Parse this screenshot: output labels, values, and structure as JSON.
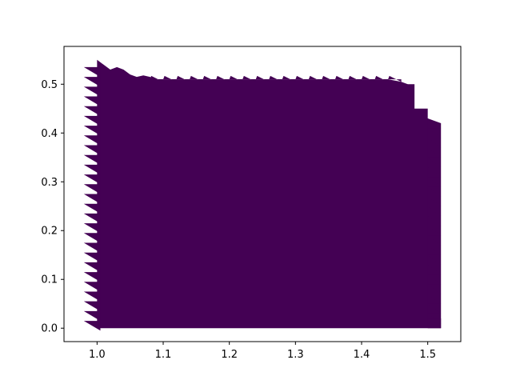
{
  "chart_data": {
    "type": "area",
    "title": "",
    "xlabel": "",
    "ylabel": "",
    "xlim": [
      0.95,
      1.55
    ],
    "ylim": [
      -0.0275,
      0.5775
    ],
    "grid": false,
    "legend": "none",
    "x_ticks": [
      "1.0",
      "1.1",
      "1.2",
      "1.3",
      "1.4",
      "1.5"
    ],
    "x_tick_values": [
      1.0,
      1.1,
      1.2,
      1.3,
      1.4,
      1.5
    ],
    "y_ticks": [
      "0.0",
      "0.1",
      "0.2",
      "0.3",
      "0.4",
      "0.5"
    ],
    "y_tick_values": [
      0.0,
      0.1,
      0.2,
      0.3,
      0.4,
      0.5
    ],
    "fill_color": "#440154",
    "series": [
      {
        "x": [
          1.0,
          1.01,
          1.02,
          1.03,
          1.04,
          1.05,
          1.06,
          1.07,
          1.08,
          1.09,
          1.1,
          1.12,
          1.14,
          1.16,
          1.18,
          1.2,
          1.22,
          1.24,
          1.26,
          1.28,
          1.3,
          1.32,
          1.34,
          1.36,
          1.38,
          1.4,
          1.42,
          1.44,
          1.46,
          1.47,
          1.48,
          1.48,
          1.5,
          1.5,
          1.52
        ],
        "y": [
          0.55,
          0.54,
          0.53,
          0.535,
          0.53,
          0.52,
          0.515,
          0.518,
          0.515,
          0.51,
          0.51,
          0.51,
          0.51,
          0.51,
          0.51,
          0.51,
          0.51,
          0.51,
          0.51,
          0.51,
          0.51,
          0.51,
          0.51,
          0.51,
          0.51,
          0.51,
          0.51,
          0.51,
          0.505,
          0.5,
          0.5,
          0.45,
          0.45,
          0.43,
          0.42
        ]
      }
    ]
  }
}
